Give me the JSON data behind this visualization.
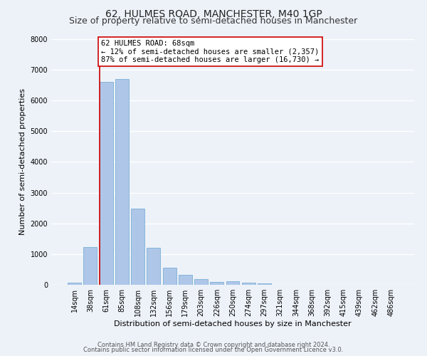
{
  "title": "62, HULMES ROAD, MANCHESTER, M40 1GP",
  "subtitle": "Size of property relative to semi-detached houses in Manchester",
  "xlabel": "Distribution of semi-detached houses by size in Manchester",
  "ylabel": "Number of semi-detached properties",
  "footer_line1": "Contains HM Land Registry data © Crown copyright and database right 2024.",
  "footer_line2": "Contains public sector information licensed under the Open Government Licence v3.0.",
  "bar_labels": [
    "14sqm",
    "38sqm",
    "61sqm",
    "85sqm",
    "108sqm",
    "132sqm",
    "156sqm",
    "179sqm",
    "203sqm",
    "226sqm",
    "250sqm",
    "274sqm",
    "297sqm",
    "321sqm",
    "344sqm",
    "368sqm",
    "392sqm",
    "415sqm",
    "439sqm",
    "462sqm",
    "486sqm"
  ],
  "bar_values": [
    75,
    1230,
    6600,
    6700,
    2490,
    1200,
    560,
    330,
    175,
    100,
    105,
    80,
    50,
    0,
    0,
    0,
    0,
    0,
    0,
    0,
    0
  ],
  "bar_color": "#aec6e8",
  "bar_edgecolor": "#7aafd4",
  "ylim": [
    0,
    8000
  ],
  "vline_x": 1.575,
  "vline_color": "#cc0000",
  "annotation_title": "62 HULMES ROAD: 68sqm",
  "annotation_line1": "← 12% of semi-detached houses are smaller (2,357)",
  "annotation_line2": "87% of semi-detached houses are larger (16,730) →",
  "annotation_box_facecolor": "#ffffff",
  "annotation_box_edgecolor": "#cc0000",
  "bg_color": "#edf2f9",
  "grid_color": "#ffffff",
  "title_fontsize": 10,
  "subtitle_fontsize": 9,
  "xlabel_fontsize": 8,
  "ylabel_fontsize": 8,
  "tick_fontsize": 7,
  "annotation_fontsize": 7.5,
  "footer_fontsize": 6
}
